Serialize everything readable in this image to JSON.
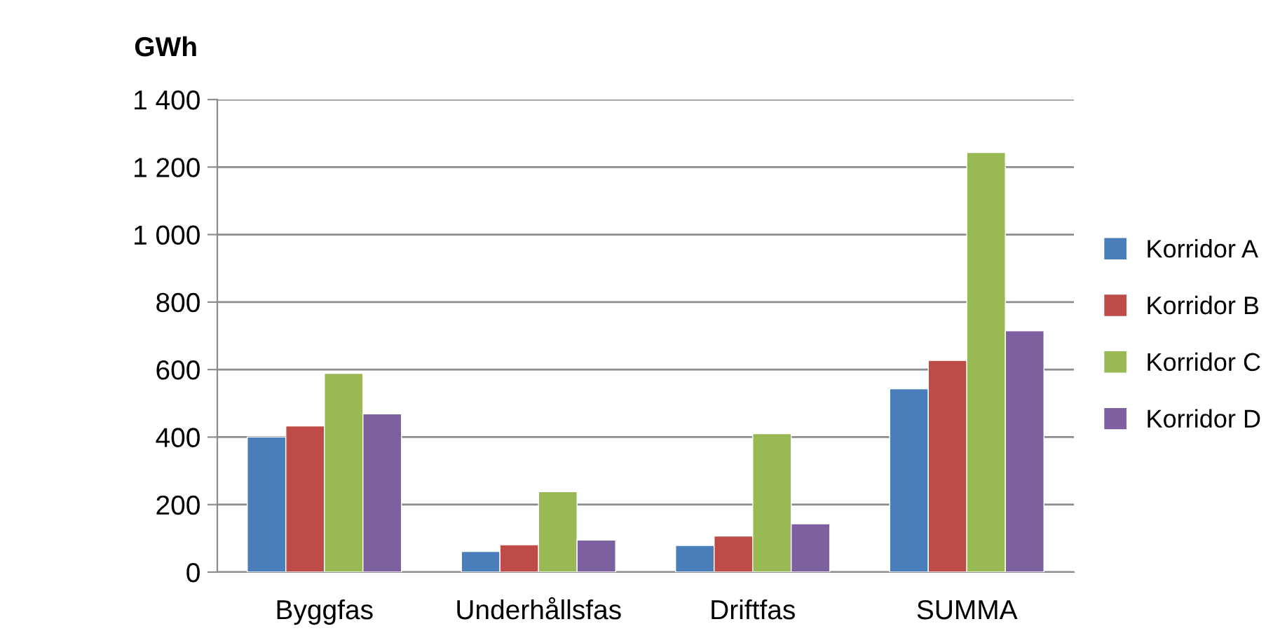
{
  "chart_data": {
    "type": "bar",
    "ylabel": "GWh",
    "categories": [
      "Byggfas",
      "Underhållsfas",
      "Driftfas",
      "SUMMA"
    ],
    "series": [
      {
        "name": "Korridor A",
        "color": "#4a7ebb",
        "values": [
          400,
          61,
          79,
          543
        ]
      },
      {
        "name": "Korridor B",
        "color": "#be4b48",
        "values": [
          433,
          81,
          107,
          627
        ]
      },
      {
        "name": "Korridor C",
        "color": "#98b954",
        "values": [
          589,
          238,
          410,
          1243
        ]
      },
      {
        "name": "Korridor D",
        "color": "#7d60a0",
        "values": [
          469,
          95,
          143,
          715
        ]
      }
    ],
    "ylim": [
      0,
      1400
    ],
    "yticks": [
      0,
      200,
      400,
      600,
      800,
      {
        "value": 1000,
        "label": "1 000"
      },
      {
        "value": 1200,
        "label": "1 200"
      },
      {
        "value": 1400,
        "label": "1 400"
      }
    ],
    "grid": "y",
    "legend": "right"
  }
}
